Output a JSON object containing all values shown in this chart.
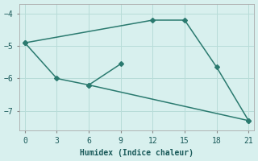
{
  "line1_x": [
    0,
    12,
    15,
    18,
    21
  ],
  "line1_y": [
    -4.9,
    -4.2,
    -4.2,
    -5.65,
    -7.3
  ],
  "line2_x": [
    0,
    3,
    6,
    21
  ],
  "line2_y": [
    -4.9,
    -6.0,
    -6.2,
    -7.3
  ],
  "line3_x": [
    6,
    9
  ],
  "line3_y": [
    -6.2,
    -5.55
  ],
  "color": "#2a7a6f",
  "bg_color": "#d8f0ee",
  "grid_color": "#b8dcd8",
  "xlabel": "Humidex (Indice chaleur)",
  "xlim": [
    -0.5,
    21.5
  ],
  "ylim": [
    -7.6,
    -3.7
  ],
  "xticks": [
    0,
    3,
    6,
    9,
    12,
    15,
    18,
    21
  ],
  "yticks": [
    -7,
    -6,
    -5,
    -4
  ],
  "marker": "D",
  "markersize": 3,
  "linewidth": 1.1
}
